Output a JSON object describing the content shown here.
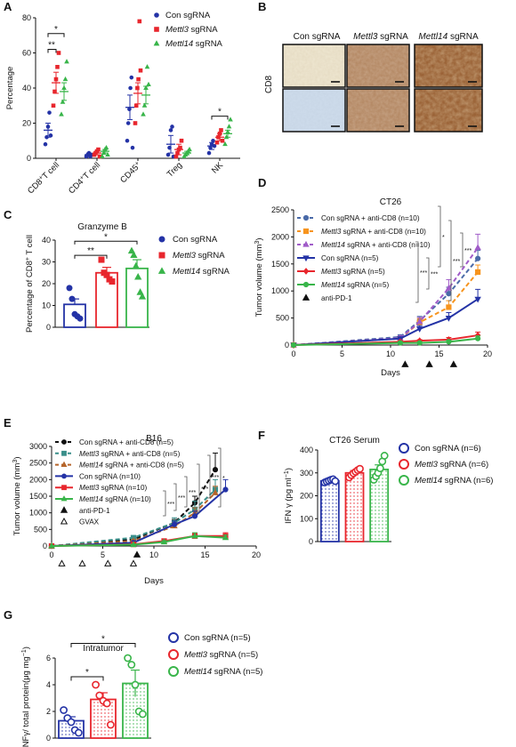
{
  "panel_letters": [
    "A",
    "B",
    "C",
    "D",
    "E",
    "F",
    "G"
  ],
  "colors": {
    "con": "#2433a6",
    "mettl3": "#e8262d",
    "mettl14": "#39b54a",
    "cd8_con": "#4a6aa8",
    "cd8_m3": "#f7941d",
    "cd8_m14": "#a05cc8",
    "b16_con_cd8": "#111111",
    "b16_m3_cd8": "#3a8f8a",
    "b16_m14_cd8": "#b5652b"
  },
  "panel_b": {
    "columns": [
      "Con sgRNA",
      "Mettl3 sgRNA",
      "Mettl14 sgRNA"
    ],
    "row_label": "CD8",
    "tiles": [
      {
        "row": 1,
        "col": "Con sgRNA",
        "stain": "light"
      },
      {
        "row": 1,
        "col": "Mettl3 sgRNA",
        "stain": "medium"
      },
      {
        "row": 1,
        "col": "Mettl14 sgRNA",
        "stain": "dark"
      },
      {
        "row": 2,
        "col": "Con sgRNA",
        "stain": "light-blue"
      },
      {
        "row": 2,
        "col": "Mettl3 sgRNA",
        "stain": "medium"
      },
      {
        "row": 2,
        "col": "Mettl14 sgRNA",
        "stain": "dark"
      }
    ]
  },
  "chart_data": [
    {
      "panel": "A",
      "type": "scatter",
      "ylabel": "Percentage",
      "ylim": [
        0,
        80
      ],
      "yticks": [
        0,
        20,
        40,
        60,
        80
      ],
      "categories": [
        "CD8+T cell",
        "CD4+T cell",
        "CD45+",
        "Treg",
        "NK"
      ],
      "category_labels": [
        {
          "main": "CD8",
          "sup": "+",
          "rest": "T cell"
        },
        {
          "main": "CD4",
          "sup": "+",
          "rest": "T cell"
        },
        {
          "main": "CD45",
          "sup": "+",
          "rest": ""
        },
        {
          "main": "Treg",
          "sup": "",
          "rest": ""
        },
        {
          "main": "NK",
          "sup": "",
          "rest": ""
        }
      ],
      "legend": [
        {
          "text": "Con sgRNA",
          "marker": "circle",
          "color_key": "con"
        },
        {
          "text": "Mettl3",
          "text2": " sgRNA",
          "italic": true,
          "marker": "square",
          "color_key": "mettl3"
        },
        {
          "text": "Mettl14",
          "text2": " sgRNA",
          "italic": true,
          "marker": "triangle",
          "color_key": "mettl14"
        }
      ],
      "series": [
        {
          "color_key": "con",
          "marker": "circle",
          "means": [
            16,
            2,
            29,
            8,
            7
          ],
          "sem": [
            4,
            1,
            7,
            5,
            2
          ],
          "points": [
            [
              8,
              12,
              18,
              26,
              13
            ],
            [
              1,
              2,
              3,
              1,
              2
            ],
            [
              10,
              20,
              28,
              40,
              46,
              6
            ],
            [
              2,
              6,
              16,
              18,
              1
            ],
            [
              3,
              6,
              8,
              10,
              7
            ]
          ]
        },
        {
          "color_key": "mettl3",
          "marker": "square",
          "means": [
            43,
            3,
            37,
            5,
            12
          ],
          "sem": [
            6,
            1,
            6,
            3,
            2
          ],
          "points": [
            [
              30,
              38,
              45,
              52,
              60
            ],
            [
              2,
              3,
              4,
              5,
              1
            ],
            [
              20,
              30,
              40,
              45,
              78,
              50
            ],
            [
              1,
              3,
              5,
              6,
              10
            ],
            [
              9,
              12,
              14,
              16,
              10
            ]
          ]
        },
        {
          "color_key": "mettl14",
          "marker": "triangle",
          "means": [
            38,
            4,
            36,
            3,
            14
          ],
          "sem": [
            5,
            1,
            5,
            1,
            2
          ],
          "points": [
            [
              25,
              32,
              40,
              45,
              55
            ],
            [
              1,
              3,
              5,
              6,
              2
            ],
            [
              25,
              30,
              40,
              52,
              42
            ],
            [
              1,
              2,
              3,
              4,
              5
            ],
            [
              8,
              12,
              15,
              18,
              22
            ]
          ]
        }
      ],
      "significance": [
        {
          "text": "*",
          "group": "CD8+T cell",
          "pair": "con-mettl14"
        },
        {
          "text": "**",
          "group": "CD8+T cell",
          "pair": "con-mettl3"
        },
        {
          "text": "*",
          "group": "NK",
          "pair": "con-mettl14"
        }
      ]
    },
    {
      "panel": "C",
      "type": "bar",
      "title": "Granzyme B",
      "ylabel": "Percentage of CD8",
      "ylabel_sup": "+",
      "ylabel_rest": " T cell",
      "ylim": [
        0,
        40
      ],
      "yticks": [
        0,
        10,
        20,
        30,
        40
      ],
      "legend": [
        {
          "text": "Con sgRNA",
          "marker": "circle",
          "color_key": "con"
        },
        {
          "text": "Mettl3",
          "text2": " sgRNA",
          "italic": true,
          "marker": "square",
          "color_key": "mettl3"
        },
        {
          "text": "Mettl14",
          "text2": " sgRNA",
          "italic": true,
          "marker": "triangle",
          "color_key": "mettl14"
        }
      ],
      "series": [
        {
          "color_key": "con",
          "marker": "circle",
          "mean": 10.5,
          "sem": 2.5,
          "points": [
            18,
            13,
            6,
            5,
            4
          ]
        },
        {
          "color_key": "mettl3",
          "marker": "square",
          "mean": 25,
          "sem": 2.5,
          "points": [
            31,
            25,
            24,
            22,
            21
          ]
        },
        {
          "color_key": "mettl14",
          "marker": "triangle",
          "mean": 27,
          "sem": 4,
          "points": [
            35,
            33,
            28,
            23,
            16,
            14
          ]
        }
      ],
      "significance": [
        {
          "text": "*",
          "pair": "con-mettl14"
        },
        {
          "text": "**",
          "pair": "con-mettl3"
        }
      ]
    },
    {
      "panel": "D",
      "type": "line",
      "title": "CT26",
      "xlabel": "Days",
      "ylabel": "Tumor volume (mm",
      "ylabel_sup": "3",
      "ylabel_rest": ")",
      "xlim": [
        0,
        20
      ],
      "ylim": [
        0,
        2500
      ],
      "xticks": [
        0,
        5,
        10,
        15,
        20
      ],
      "yticks": [
        0,
        500,
        1000,
        1500,
        2000,
        2500
      ],
      "treatment_days": [
        11.5,
        14,
        16.5
      ],
      "legend": [
        {
          "text": "Con sgRNA + anti-CD8 (n=10)",
          "italic_prefix": "",
          "color_key": "cd8_con",
          "dash": true,
          "marker": "circle"
        },
        {
          "text": " sgRNA + anti-CD8 (n=10)",
          "italic_prefix": "Mettl3",
          "color_key": "cd8_m3",
          "dash": true,
          "marker": "square"
        },
        {
          "text": " sgRNA + anti-CD8 (n=10)",
          "italic_prefix": "Mettl14",
          "color_key": "cd8_m14",
          "dash": true,
          "marker": "triangle"
        },
        {
          "text": "Con sgRNA  (n=5)",
          "italic_prefix": "",
          "color_key": "con",
          "dash": false,
          "marker": "tri-down"
        },
        {
          "text": " sgRNA (n=5)",
          "italic_prefix": "Mettl3",
          "color_key": "mettl3",
          "dash": false,
          "marker": "diamond"
        },
        {
          "text": " sgRNA (n=5)",
          "italic_prefix": "Mettl14",
          "color_key": "mettl14",
          "dash": false,
          "marker": "circle"
        },
        {
          "text": "anti-PD-1",
          "italic_prefix": "",
          "color_key": "",
          "dash": false,
          "marker": "black-triangle"
        }
      ],
      "series": [
        {
          "color_key": "cd8_con",
          "dash": true,
          "marker": "circle",
          "x": [
            0,
            11,
            13,
            16,
            19
          ],
          "y": [
            0,
            150,
            450,
            950,
            1600
          ],
          "err": [
            0,
            40,
            80,
            120,
            150
          ]
        },
        {
          "color_key": "cd8_m3",
          "dash": true,
          "marker": "square",
          "x": [
            0,
            11,
            13,
            16,
            19
          ],
          "y": [
            0,
            120,
            420,
            700,
            1350
          ],
          "err": [
            0,
            40,
            70,
            120,
            130
          ]
        },
        {
          "color_key": "cd8_m14",
          "dash": true,
          "marker": "triangle",
          "x": [
            0,
            11,
            13,
            16,
            19
          ],
          "y": [
            0,
            130,
            430,
            1050,
            1800
          ],
          "err": [
            0,
            40,
            80,
            160,
            250
          ]
        },
        {
          "color_key": "con",
          "dash": false,
          "marker": "tri-down",
          "x": [
            0,
            11,
            13,
            16,
            19
          ],
          "y": [
            0,
            120,
            300,
            500,
            850
          ],
          "err": [
            0,
            30,
            60,
            100,
            180
          ]
        },
        {
          "color_key": "mettl3",
          "dash": false,
          "marker": "diamond",
          "x": [
            0,
            11,
            13,
            16,
            19
          ],
          "y": [
            0,
            60,
            80,
            100,
            180
          ],
          "err": [
            0,
            20,
            20,
            40,
            60
          ]
        },
        {
          "color_key": "mettl14",
          "dash": false,
          "marker": "circle",
          "x": [
            0,
            11,
            13,
            16,
            19
          ],
          "y": [
            0,
            40,
            40,
            60,
            120
          ],
          "err": [
            0,
            15,
            15,
            30,
            50
          ]
        }
      ],
      "significance": [
        "*",
        "***",
        "***",
        "***",
        "***"
      ]
    },
    {
      "panel": "E",
      "type": "line",
      "title": "B16",
      "xlabel": "Days",
      "ylabel": "Tumor volume (mm",
      "ylabel_sup": "3",
      "ylabel_rest": ")",
      "xlim": [
        0,
        20
      ],
      "ylim": [
        0,
        3000
      ],
      "xticks": [
        0,
        5,
        10,
        15,
        20
      ],
      "yticks": [
        0,
        500,
        1000,
        1500,
        2000,
        2500,
        3000
      ],
      "anti_pd1_days": [
        8
      ],
      "gvax_days": [
        1,
        3,
        5.5,
        8
      ],
      "legend": [
        {
          "text": "Con sgRNA + anti-CD8 (n=5)",
          "italic_prefix": "",
          "color_key": "b16_con_cd8",
          "dash": true,
          "marker": "circle"
        },
        {
          "text": " sgRNA + anti-CD8 (n=5)",
          "italic_prefix": "Mettl3",
          "color_key": "b16_m3_cd8",
          "dash": true,
          "marker": "square"
        },
        {
          "text": " sgRNA + anti-CD8 (n=5)",
          "italic_prefix": "Mettl14",
          "color_key": "b16_m14_cd8",
          "dash": true,
          "marker": "triangle"
        },
        {
          "text": "Con sgRNA  (n=10)",
          "italic_prefix": "",
          "color_key": "con",
          "dash": false,
          "marker": "circle"
        },
        {
          "text": " sgRNA (n=10)",
          "italic_prefix": "Mettl3",
          "color_key": "mettl3",
          "dash": false,
          "marker": "square"
        },
        {
          "text": " sgRNA (n=10)",
          "italic_prefix": "Mettl14",
          "color_key": "mettl14",
          "dash": false,
          "marker": "triangle"
        },
        {
          "text": "anti-PD-1",
          "italic_prefix": "",
          "color_key": "",
          "dash": false,
          "marker": "black-triangle"
        },
        {
          "text": "GVAX",
          "italic_prefix": "",
          "color_key": "",
          "dash": false,
          "marker": "open-triangle"
        }
      ],
      "series": [
        {
          "color_key": "b16_con_cd8",
          "dash": true,
          "marker": "circle",
          "x": [
            0,
            8,
            12,
            14,
            16
          ],
          "y": [
            0,
            200,
            700,
            1300,
            2300
          ],
          "err": [
            0,
            50,
            100,
            200,
            500
          ]
        },
        {
          "color_key": "b16_m3_cd8",
          "dash": true,
          "marker": "square",
          "x": [
            0,
            8,
            12,
            14,
            16
          ],
          "y": [
            0,
            250,
            700,
            1100,
            1700
          ],
          "err": [
            0,
            50,
            150,
            250,
            300
          ]
        },
        {
          "color_key": "b16_m14_cd8",
          "dash": true,
          "marker": "triangle",
          "x": [
            0,
            8,
            12,
            14,
            16
          ],
          "y": [
            0,
            150,
            600,
            1000,
            1600
          ],
          "err": [
            0,
            40,
            100,
            150,
            200
          ]
        },
        {
          "color_key": "con",
          "dash": false,
          "marker": "circle",
          "x": [
            0,
            8,
            12,
            14,
            17
          ],
          "y": [
            0,
            100,
            650,
            900,
            1700
          ],
          "err": [
            0,
            30,
            100,
            150,
            300
          ]
        },
        {
          "color_key": "mettl3",
          "dash": false,
          "marker": "square",
          "x": [
            0,
            8,
            11,
            14,
            17
          ],
          "y": [
            0,
            50,
            150,
            300,
            300
          ],
          "err": [
            0,
            20,
            40,
            80,
            100
          ]
        },
        {
          "color_key": "mettl14",
          "dash": false,
          "marker": "triangle",
          "x": [
            0,
            8,
            11,
            14,
            17
          ],
          "y": [
            0,
            40,
            120,
            300,
            250
          ],
          "err": [
            0,
            15,
            40,
            100,
            80
          ]
        }
      ],
      "significance": [
        "*",
        "***",
        "***",
        "***",
        "***",
        "***"
      ]
    },
    {
      "panel": "F",
      "type": "bar",
      "title": "CT26 Serum",
      "ylabel": "IFN γ (pg ml",
      "ylabel_sup": "−1",
      "ylabel_rest": ")",
      "ylim": [
        0,
        400
      ],
      "yticks": [
        0,
        100,
        200,
        300,
        400
      ],
      "legend": [
        {
          "text": "Con sgRNA (n=6)",
          "italic_prefix": "",
          "color_key": "con"
        },
        {
          "text": " sgRNA (n=6)",
          "italic_prefix": "Mettl3",
          "color_key": "mettl3"
        },
        {
          "text": " sgRNA (n=6)",
          "italic_prefix": "Mettl14",
          "color_key": "mettl14"
        }
      ],
      "series": [
        {
          "color_key": "con",
          "mean": 265,
          "sem": 5,
          "points": [
            258,
            262,
            266,
            270,
            272,
            264
          ]
        },
        {
          "color_key": "mettl3",
          "mean": 300,
          "sem": 10,
          "points": [
            280,
            290,
            298,
            305,
            312,
            318
          ]
        },
        {
          "color_key": "mettl14",
          "mean": 315,
          "sem": 20,
          "points": [
            270,
            285,
            300,
            320,
            350,
            375
          ]
        }
      ]
    },
    {
      "panel": "G",
      "type": "bar",
      "title": "Intratumor",
      "ylabel": "INFγ/ total protein(μg mg",
      "ylabel_sup": "−1",
      "ylabel_rest": ")",
      "ylim": [
        0,
        6
      ],
      "yticks": [
        0,
        2,
        4,
        6
      ],
      "legend": [
        {
          "text": "Con sgRNA (n=5)",
          "italic_prefix": "",
          "color_key": "con"
        },
        {
          "text": " sgRNA (n=5)",
          "italic_prefix": "Mettl3",
          "color_key": "mettl3"
        },
        {
          "text": " sgRNA (n=5)",
          "italic_prefix": "Mettl14",
          "color_key": "mettl14"
        }
      ],
      "series": [
        {
          "color_key": "con",
          "mean": 1.3,
          "sem": 0.3,
          "points": [
            2.1,
            1.5,
            1.2,
            0.6,
            0.4
          ]
        },
        {
          "color_key": "mettl3",
          "mean": 2.9,
          "sem": 0.5,
          "points": [
            4.0,
            3.2,
            2.8,
            2.6,
            1.0
          ]
        },
        {
          "color_key": "mettl14",
          "mean": 4.1,
          "sem": 1.0,
          "points": [
            6.0,
            5.5,
            4.0,
            2.0,
            1.8
          ]
        }
      ],
      "significance": [
        {
          "text": "*",
          "pair": "con-mettl14"
        },
        {
          "text": "*",
          "pair": "con-mettl3"
        }
      ]
    }
  ]
}
